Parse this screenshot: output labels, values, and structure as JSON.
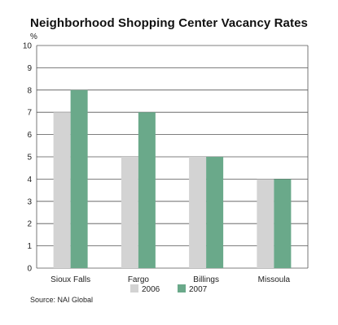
{
  "chart_data": {
    "type": "bar",
    "title": "Neighborhood Shopping Center Vacancy Rates",
    "ylabel": "%",
    "xlabel": "",
    "ylim": [
      0,
      10
    ],
    "yticks": [
      0,
      1,
      2,
      3,
      4,
      5,
      6,
      7,
      8,
      9,
      10
    ],
    "grid": true,
    "legend_position": "bottom",
    "categories": [
      "Sioux Falls",
      "Fargo",
      "Billings",
      "Missoula"
    ],
    "series": [
      {
        "name": "2006",
        "values": [
          7,
          5,
          5,
          4
        ],
        "color": "#d3d3d3"
      },
      {
        "name": "2007",
        "values": [
          8,
          7,
          5,
          4
        ],
        "color": "#6aa98a"
      }
    ]
  },
  "source": "Source: NAI Global"
}
